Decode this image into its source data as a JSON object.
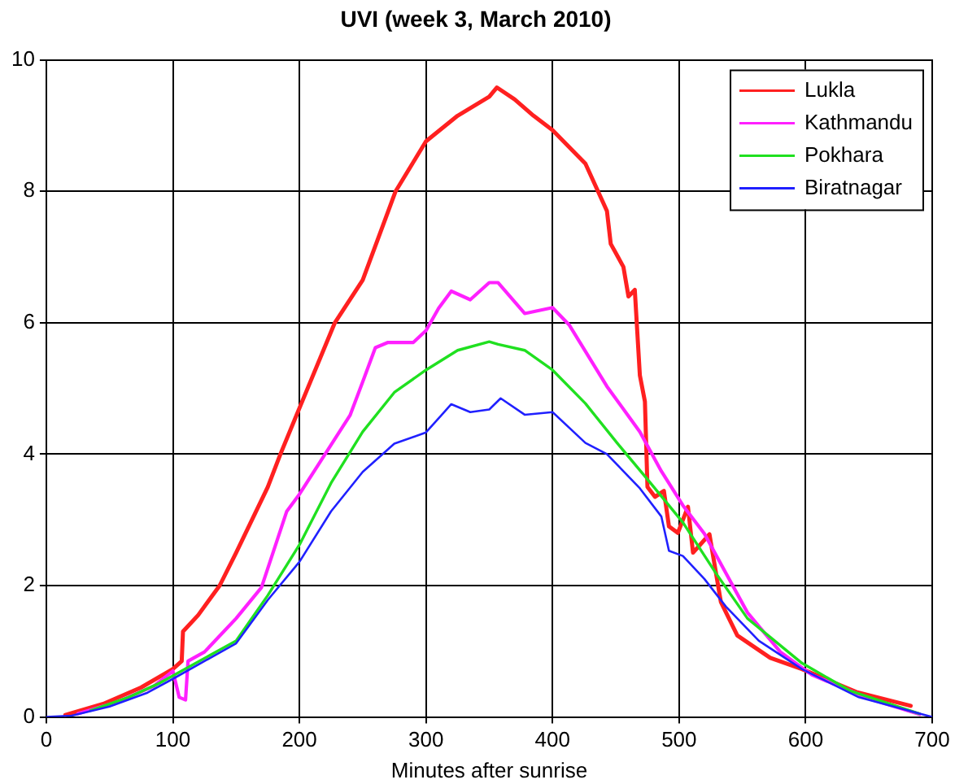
{
  "chart_data": {
    "type": "line",
    "title": "UVI (week 3, March 2010)",
    "xlabel": "Minutes after sunrise",
    "xlim": [
      0,
      700
    ],
    "xticks": [
      0,
      100,
      200,
      300,
      400,
      500,
      600,
      700
    ],
    "ylim": [
      0,
      10
    ],
    "yticks": [
      0,
      2,
      4,
      6,
      8,
      10
    ],
    "grid": true,
    "legend": "top right",
    "line_style": "solid",
    "marker": "none",
    "series": [
      {
        "name": "Lukla",
        "color": "#ff2020",
        "x": [
          15,
          45,
          75,
          100,
          107,
          108,
          120,
          137,
          150,
          175,
          185,
          200,
          228,
          250,
          276,
          300,
          325,
          350,
          356,
          370,
          385,
          400,
          426,
          443,
          446,
          456,
          460,
          465,
          469,
          473,
          475,
          481,
          488,
          492,
          499,
          507,
          511,
          524,
          533,
          546,
          572,
          597,
          640,
          683
        ],
        "values": [
          0.03,
          0.2,
          0.45,
          0.73,
          0.85,
          1.3,
          1.55,
          2,
          2.5,
          3.5,
          4,
          4.7,
          6,
          6.65,
          8,
          8.76,
          9.15,
          9.44,
          9.58,
          9.4,
          9.15,
          8.93,
          8.42,
          7.7,
          7.2,
          6.85,
          6.4,
          6.5,
          5.2,
          4.8,
          3.5,
          3.35,
          3.44,
          2.9,
          2.8,
          3.2,
          2.5,
          2.78,
          1.75,
          1.24,
          0.9,
          0.73,
          0.38,
          0.17
        ]
      },
      {
        "name": "Kathmandu",
        "color": "#ff20ff",
        "x": [
          25,
          55,
          85,
          100,
          105,
          110,
          112,
          125,
          150,
          170,
          190,
          200,
          220,
          240,
          250,
          260,
          270,
          290,
          300,
          310,
          320,
          335,
          350,
          357,
          378,
          400,
          413,
          443,
          469,
          486,
          503,
          520,
          537,
          554,
          580,
          605,
          650,
          690
        ],
        "values": [
          0.05,
          0.22,
          0.47,
          0.7,
          0.3,
          0.26,
          0.85,
          0.99,
          1.5,
          1.97,
          3.13,
          3.39,
          3.99,
          4.59,
          5.1,
          5.62,
          5.7,
          5.7,
          5.88,
          6.22,
          6.48,
          6.35,
          6.61,
          6.61,
          6.14,
          6.23,
          5.97,
          5.03,
          4.34,
          3.74,
          3.22,
          2.79,
          2.19,
          1.59,
          0.99,
          0.64,
          0.28,
          0.04
        ]
      },
      {
        "name": "Pokhara",
        "color": "#20e020",
        "x": [
          35,
          65,
          90,
          150,
          175,
          200,
          225,
          250,
          275,
          300,
          325,
          350,
          357,
          378,
          400,
          426,
          451,
          477,
          503,
          529,
          554,
          597,
          635,
          690
        ],
        "values": [
          0.1,
          0.3,
          0.52,
          1.16,
          1.85,
          2.62,
          3.56,
          4.34,
          4.94,
          5.28,
          5.58,
          5.71,
          5.67,
          5.58,
          5.28,
          4.77,
          4.17,
          3.57,
          2.96,
          2.19,
          1.5,
          0.82,
          0.4,
          0.05
        ]
      },
      {
        "name": "Biratnagar",
        "color": "#2020ff",
        "x": [
          0,
          20,
          50,
          80,
          100,
          150,
          175,
          200,
          225,
          250,
          275,
          300,
          320,
          335,
          350,
          359,
          378,
          400,
          426,
          443,
          469,
          486,
          492,
          503,
          520,
          537,
          563,
          597,
          642,
          700
        ],
        "values": [
          0,
          0.02,
          0.16,
          0.37,
          0.58,
          1.12,
          1.78,
          2.36,
          3.13,
          3.73,
          4.16,
          4.33,
          4.76,
          4.64,
          4.68,
          4.85,
          4.6,
          4.64,
          4.17,
          4,
          3.48,
          3.05,
          2.53,
          2.45,
          2.1,
          1.68,
          1.16,
          0.73,
          0.3,
          0
        ]
      }
    ]
  }
}
